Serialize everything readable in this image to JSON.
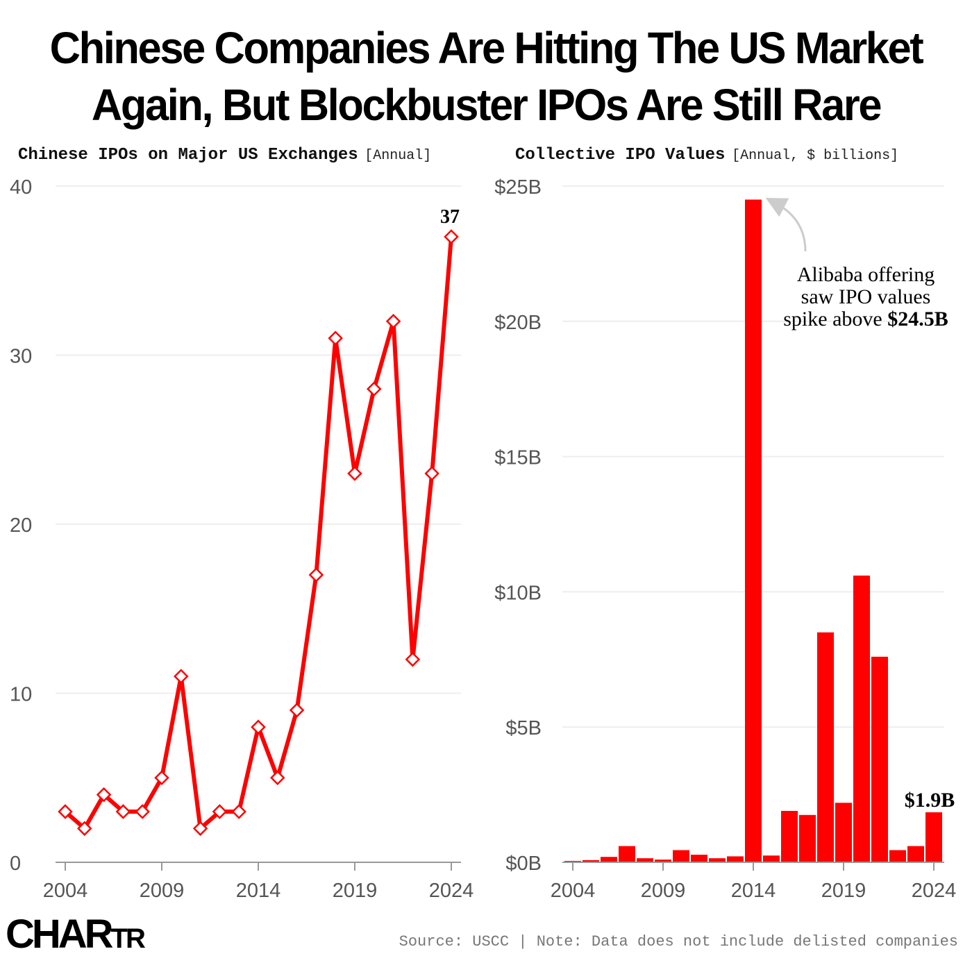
{
  "headline": {
    "line1": "Chinese Companies Are Hitting The US Market",
    "line2": "Again, But Blockbuster IPOs Are Still Rare"
  },
  "colors": {
    "accent": "#ff0000",
    "grid": "#eeeeee",
    "axis": "#999999",
    "arrow": "#cccccc"
  },
  "chart_data": [
    {
      "type": "line",
      "title": "Chinese IPOs on Major US Exchanges",
      "unit_label": "[Annual]",
      "x": [
        2004,
        2005,
        2006,
        2007,
        2008,
        2009,
        2010,
        2011,
        2012,
        2013,
        2014,
        2015,
        2016,
        2017,
        2018,
        2019,
        2020,
        2021,
        2022,
        2023,
        2024
      ],
      "values": [
        3,
        2,
        4,
        3,
        3,
        5,
        11,
        2,
        3,
        3,
        8,
        5,
        9,
        17,
        31,
        23,
        28,
        32,
        12,
        23,
        37
      ],
      "ylim": [
        0,
        40
      ],
      "y_ticks": [
        "0",
        "10",
        "20",
        "30",
        "40"
      ],
      "x_ticks": [
        "2004",
        "2009",
        "2014",
        "2019",
        "2024"
      ],
      "marker": "diamond",
      "end_label": "37"
    },
    {
      "type": "bar",
      "title": "Collective IPO Values",
      "unit_label": "[Annual, $ billions]",
      "x": [
        2004,
        2005,
        2006,
        2007,
        2008,
        2009,
        2010,
        2011,
        2012,
        2013,
        2014,
        2015,
        2016,
        2017,
        2018,
        2019,
        2020,
        2021,
        2022,
        2023,
        2024
      ],
      "values": [
        0.05,
        0.08,
        0.2,
        0.6,
        0.15,
        0.1,
        0.45,
        0.28,
        0.15,
        0.22,
        24.5,
        0.25,
        1.9,
        1.75,
        8.5,
        2.2,
        10.6,
        7.6,
        0.45,
        0.6,
        1.85
      ],
      "ylim": [
        0,
        25
      ],
      "y_ticks": [
        "$0B",
        "$5B",
        "$10B",
        "$15B",
        "$20B",
        "$25B"
      ],
      "x_ticks": [
        "2004",
        "2009",
        "2014",
        "2019",
        "2024"
      ],
      "annotation": {
        "line1": "Alibaba offering",
        "line2": "saw IPO values",
        "line3_text": "spike above ",
        "line3_value": "$24.5B"
      },
      "end_label": "$1.9B"
    }
  ],
  "footer": {
    "logo_main": "CHAR",
    "logo_tr": "TR",
    "source": "Source: USCC | Note: Data does not include delisted companies"
  }
}
